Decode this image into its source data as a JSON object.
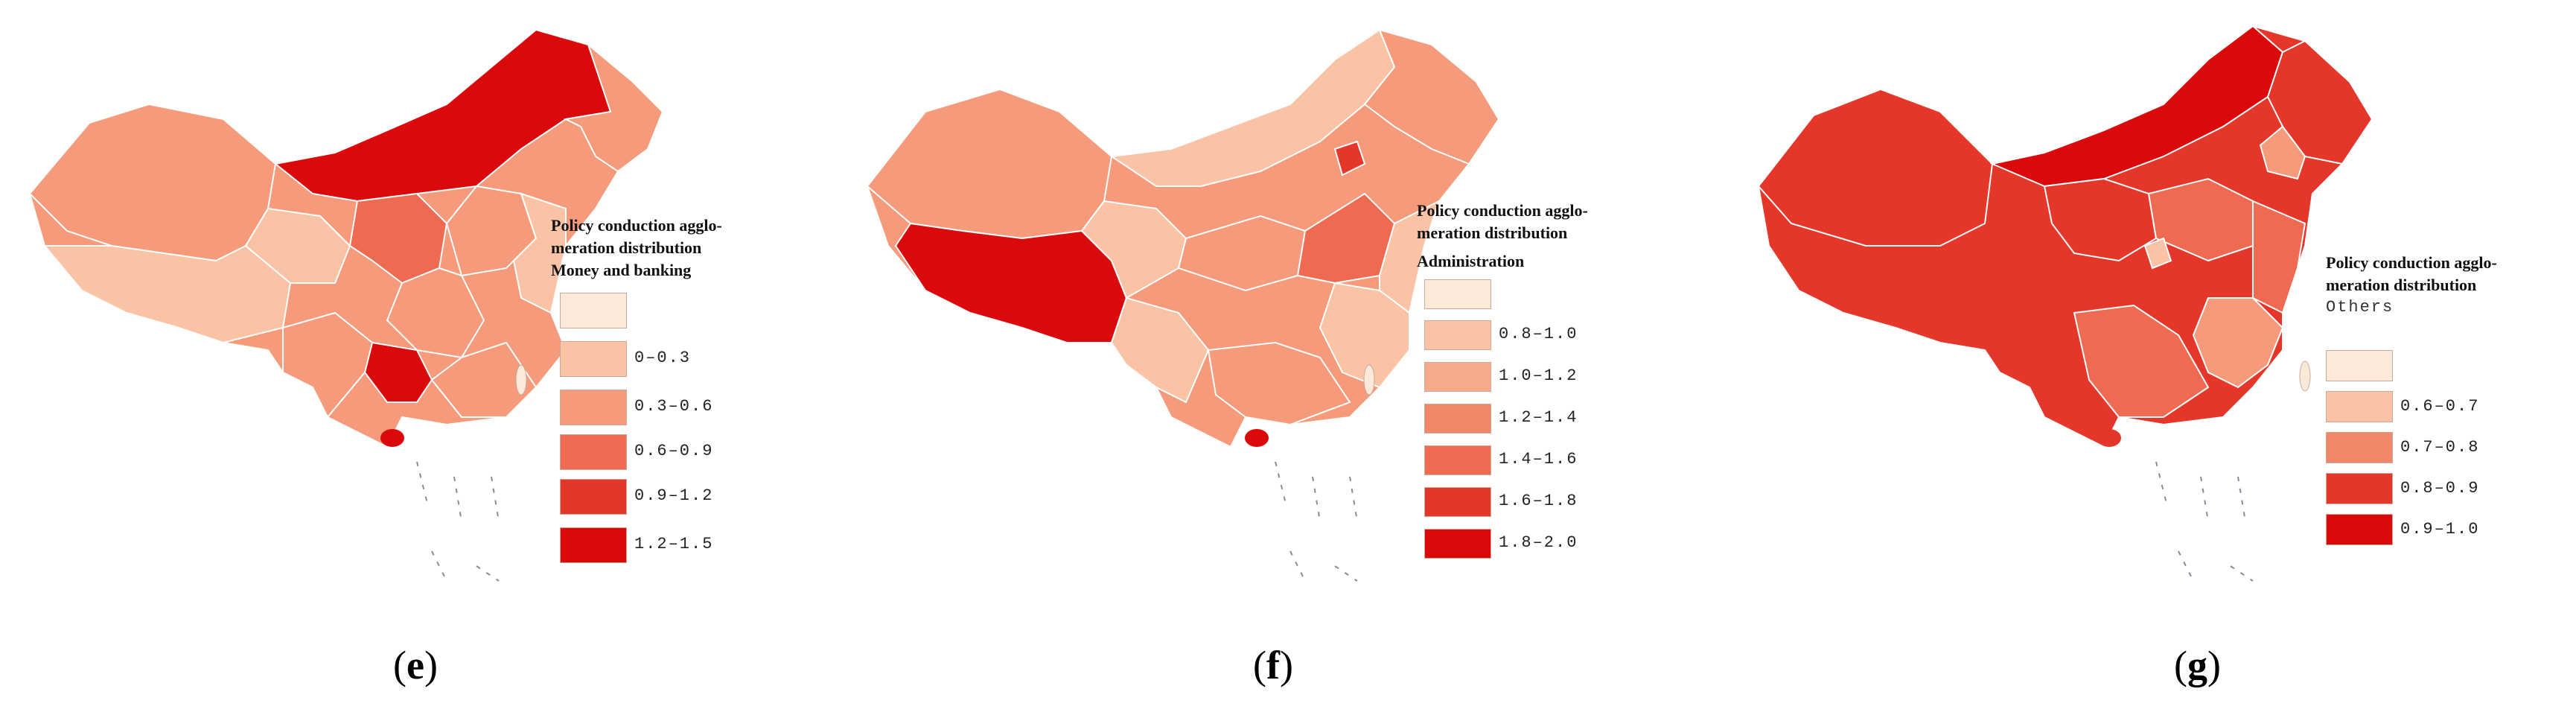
{
  "colors": {
    "c0": "#fde9d9",
    "c1": "#fbc3a6",
    "c2": "#f59a7a",
    "c3": "#ee6a50",
    "c4": "#e5362a",
    "c5": "#d9090c"
  },
  "panels": [
    {
      "label_open": "(",
      "label_letter": "e",
      "label_close": ")",
      "legend_title": "Policy conduction agglo-",
      "legend_title2": "meration distribution",
      "legend_subtitle": "Money and banking",
      "legend_items": [
        "",
        "0–0.3",
        "0.3–0.6",
        "0.6–0.9",
        "0.9–1.2",
        "1.2–1.5"
      ]
    },
    {
      "label_open": "(",
      "label_letter": "f",
      "label_close": ")",
      "legend_title": "Policy conduction agglo-",
      "legend_title2": "meration distribution",
      "legend_subtitle": "Administration",
      "legend_items": [
        "",
        "0.8–1.0",
        "1.0–1.2",
        "1.2–1.4",
        "1.4–1.6",
        "1.6–1.8",
        "1.8–2.0"
      ]
    },
    {
      "label_open": "(",
      "label_letter": "g",
      "label_close": ")",
      "legend_title": "Policy conduction agglo-",
      "legend_title2": "meration distribution",
      "legend_subtitle": "Others",
      "legend_items": [
        "",
        "0.6–0.7",
        "0.7–0.8",
        "0.8–0.9",
        "0.9–1.0"
      ]
    }
  ]
}
